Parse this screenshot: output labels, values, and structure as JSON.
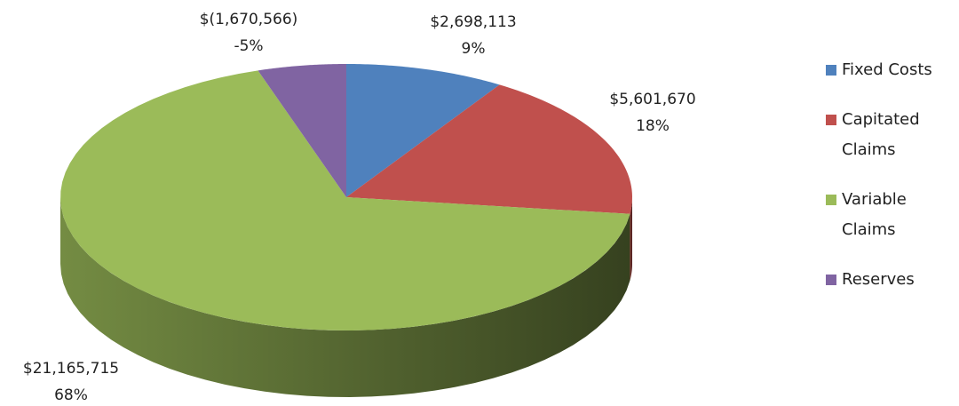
{
  "chart_data": {
    "type": "pie",
    "categories": [
      "Fixed Costs",
      "Capitated Claims",
      "Variable Claims",
      "Reserves"
    ],
    "values": [
      2698113,
      5601670,
      21165715,
      -1670566
    ],
    "value_labels": [
      "$2,698,113",
      "$5,601,670",
      "$21,165,715",
      "$(1,670,566)"
    ],
    "percentages": [
      9,
      18,
      68,
      -5
    ],
    "percent_labels": [
      "9%",
      "18%",
      "68%",
      "-5%"
    ],
    "colors": [
      "#4f81bd",
      "#c0504d",
      "#9bbb59",
      "#8064a2"
    ],
    "legend": "right"
  }
}
